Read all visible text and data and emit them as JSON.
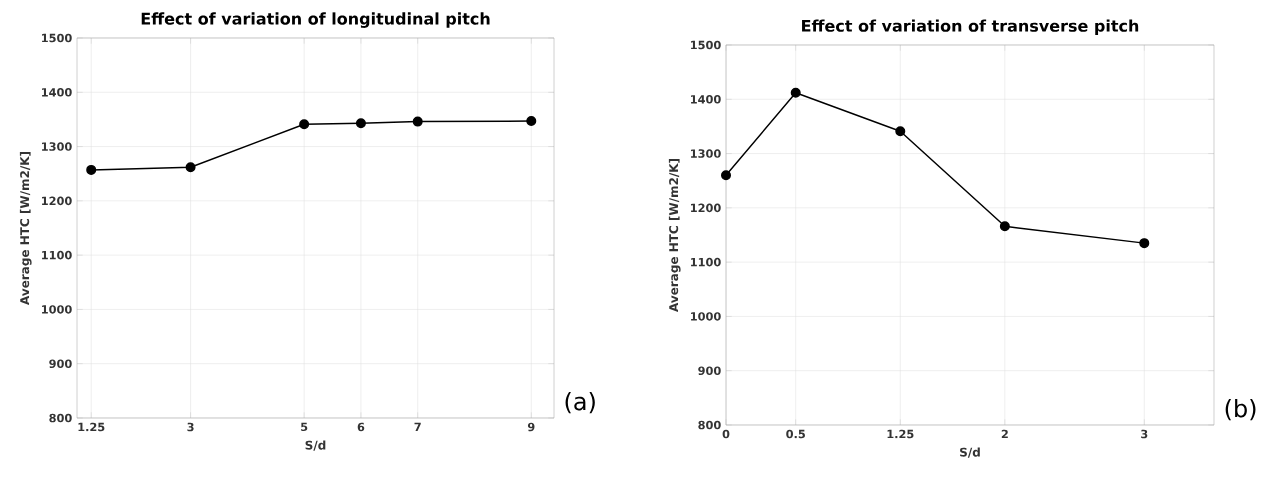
{
  "chart_data": [
    {
      "type": "line",
      "title": "Effect of variation of longitudinal pitch",
      "xlabel": "S/d",
      "ylabel": "Average HTC [W/m2/K]",
      "x": [
        1.25,
        3,
        5,
        6,
        7,
        9
      ],
      "series": [
        {
          "color": "#000000",
          "values": [
            1257,
            1262,
            1341,
            1343,
            1346,
            1347
          ]
        }
      ],
      "xlim": [
        1,
        9.4
      ],
      "ylim": [
        800,
        1500
      ],
      "xticks": [
        1.25,
        3,
        5,
        6,
        7,
        9
      ],
      "yticks": [
        800,
        900,
        1000,
        1100,
        1200,
        1300,
        1400,
        1500
      ],
      "grid": true,
      "marker": "circle",
      "line_style": "solid",
      "annotations": [
        "(a)"
      ]
    },
    {
      "type": "line",
      "title": "Effect of variation of transverse pitch",
      "xlabel": "S/d",
      "ylabel": "Average HTC [W/m2/K]",
      "x": [
        0,
        0.5,
        1.25,
        2,
        3
      ],
      "series": [
        {
          "color": "#000000",
          "values": [
            1260,
            1412,
            1341,
            1166,
            1135
          ]
        }
      ],
      "xlim": [
        0,
        3.5
      ],
      "ylim": [
        800,
        1500
      ],
      "xticks": [
        0,
        0.5,
        1.25,
        2,
        3
      ],
      "yticks": [
        800,
        900,
        1000,
        1100,
        1200,
        1300,
        1400,
        1500
      ],
      "grid": true,
      "marker": "circle",
      "line_style": "solid",
      "annotations": [
        "(b)"
      ]
    }
  ]
}
